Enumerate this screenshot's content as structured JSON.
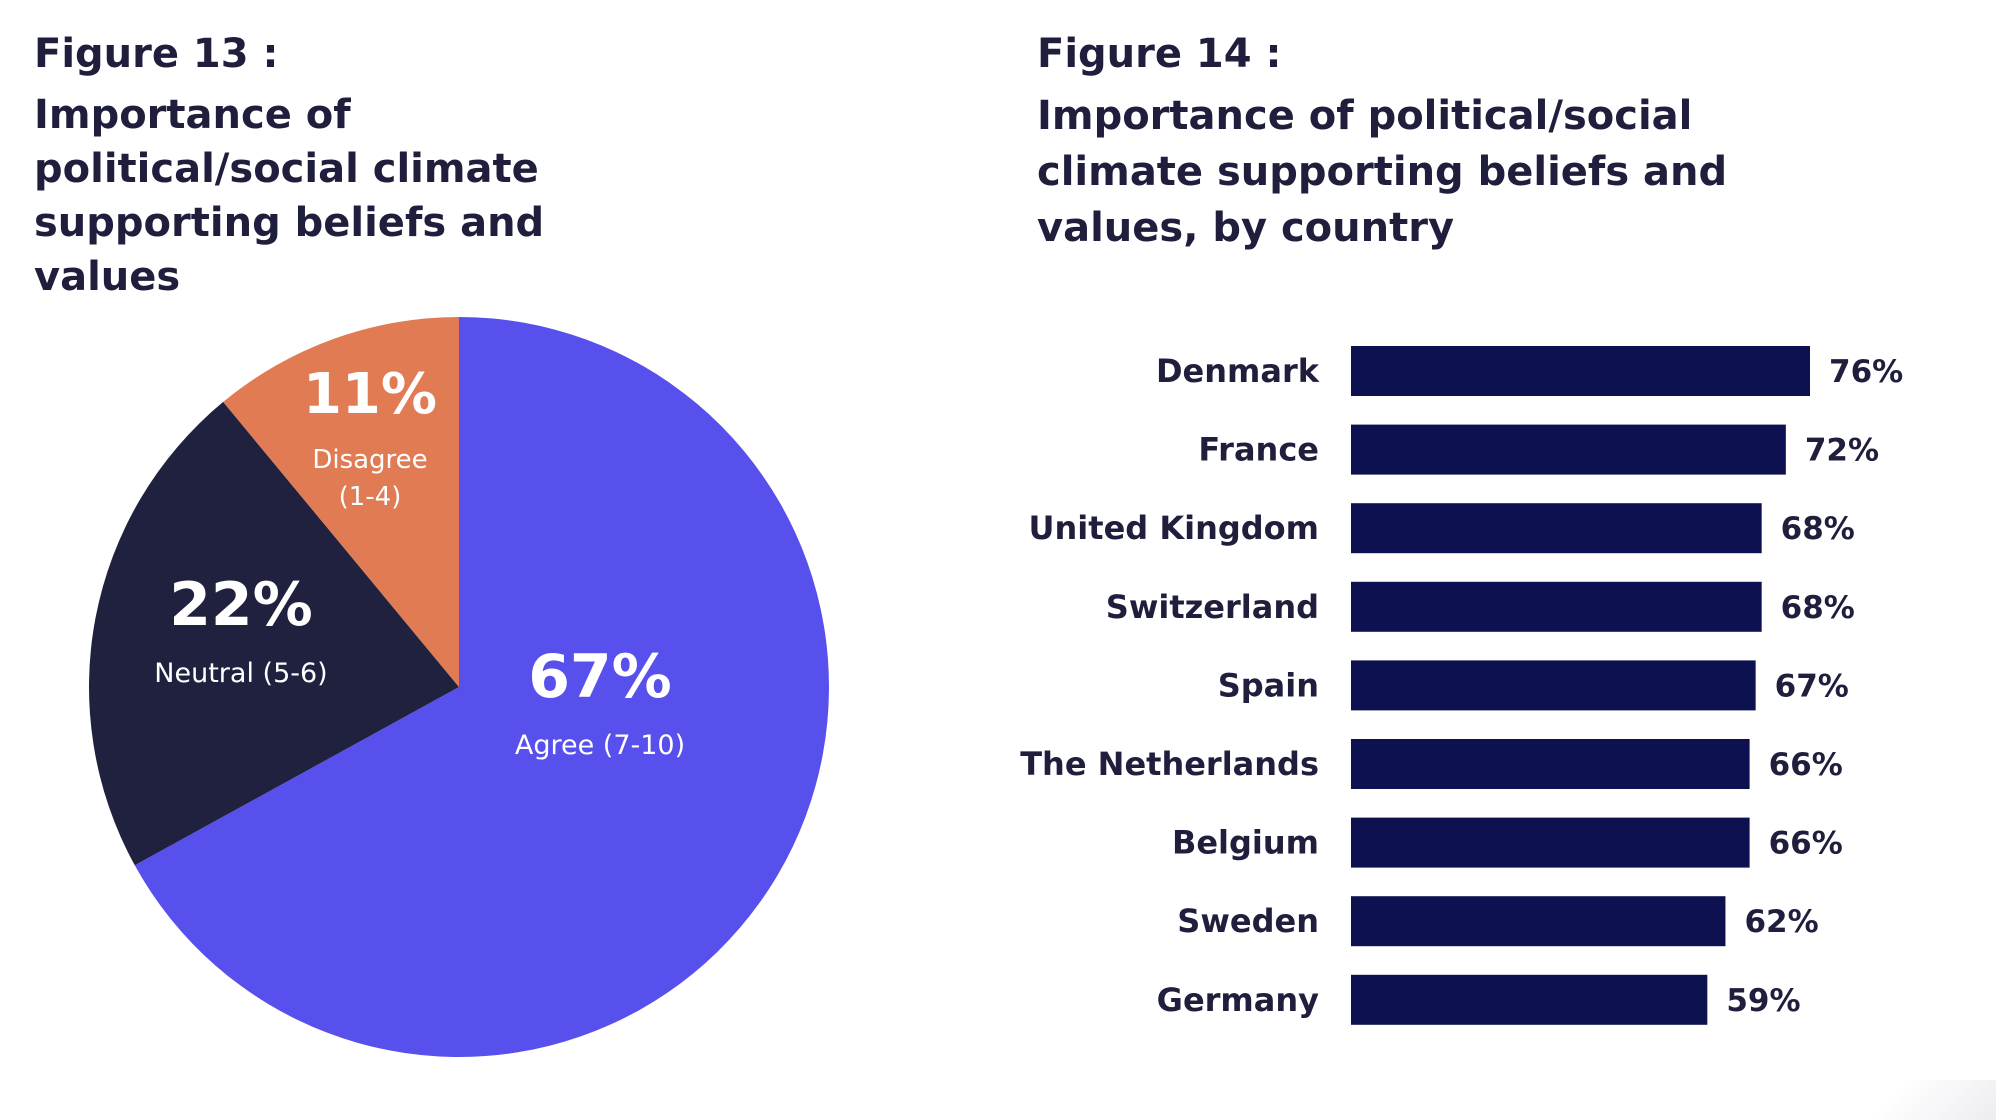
{
  "chart_data": [
    {
      "type": "pie",
      "figure_label": "Figure 13 :",
      "title": "Importance of political/social climate supporting beliefs and values",
      "slices": [
        {
          "label": "Agree (7-10)",
          "value": 67,
          "value_label": "67%",
          "color": "#5850ec"
        },
        {
          "label": "Neutral (5-6)",
          "value": 22,
          "value_label": "22%",
          "color": "#20213f"
        },
        {
          "label": "Disagree (1-4)",
          "label_lines": [
            "Disagree",
            "(1-4)"
          ],
          "value": 11,
          "value_label": "11%",
          "color": "#e07b53"
        }
      ]
    },
    {
      "type": "bar",
      "orientation": "horizontal",
      "figure_label": "Figure 14 :",
      "title": "Importance of political/social climate supporting beliefs and values, by country",
      "bar_color": "#0d1150",
      "categories": [
        "Denmark",
        "France",
        "United Kingdom",
        "Switzerland",
        "Spain",
        "The Netherlands",
        "Belgium",
        "Sweden",
        "Germany"
      ],
      "values": [
        76,
        72,
        68,
        68,
        67,
        66,
        66,
        62,
        59
      ],
      "value_labels": [
        "76%",
        "72%",
        "68%",
        "68%",
        "67%",
        "66%",
        "66%",
        "62%",
        "59%"
      ],
      "xlim": [
        0,
        76
      ]
    }
  ]
}
